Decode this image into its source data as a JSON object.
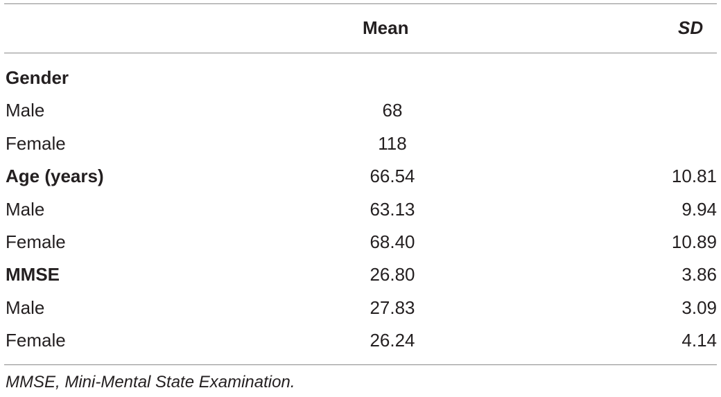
{
  "table": {
    "headers": {
      "label": "",
      "mean": "Mean",
      "sd": "SD"
    },
    "rows": [
      {
        "label": "Gender",
        "mean": "",
        "sd": "",
        "section": true
      },
      {
        "label": "Male",
        "mean": "68",
        "sd": "",
        "section": false
      },
      {
        "label": "Female",
        "mean": "118",
        "sd": "",
        "section": false
      },
      {
        "label": "Age (years)",
        "mean": "66.54",
        "sd": "10.81",
        "section": true
      },
      {
        "label": "Male",
        "mean": "63.13",
        "sd": "9.94",
        "section": false
      },
      {
        "label": "Female",
        "mean": "68.40",
        "sd": "10.89",
        "section": false
      },
      {
        "label": "MMSE",
        "mean": "26.80",
        "sd": "3.86",
        "section": true
      },
      {
        "label": "Male",
        "mean": "27.83",
        "sd": "3.09",
        "section": false
      },
      {
        "label": "Female",
        "mean": "26.24",
        "sd": "4.14",
        "section": false
      }
    ],
    "footnote": "MMSE, Mini-Mental State Examination."
  }
}
